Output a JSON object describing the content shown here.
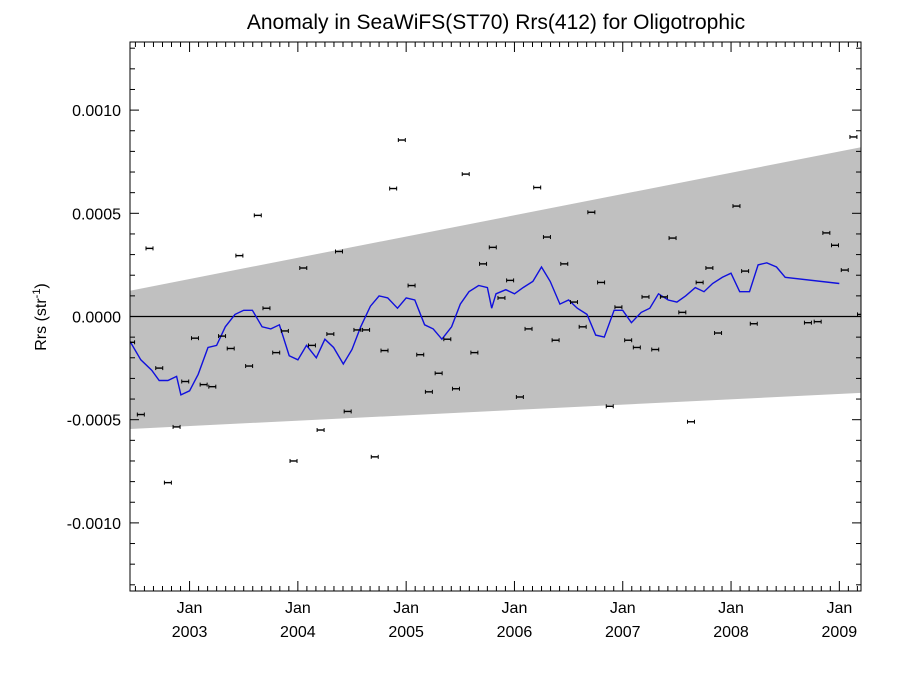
{
  "chart_data": {
    "type": "scatter",
    "title": "Anomaly in SeaWiFS(ST70) Rrs(412) for Oligotrophic",
    "ylabel": "Rrs (str",
    "ylabel_sup": "-1",
    "ylabel_suffix": ")",
    "xlim": [
      2002.45,
      2009.2
    ],
    "ylim": [
      -0.00133,
      0.00133
    ],
    "y_ticks": [
      {
        "value": 0.001,
        "label": "0.0010"
      },
      {
        "value": 0.0005,
        "label": "0.0005"
      },
      {
        "value": 0.0,
        "label": "0.0000"
      },
      {
        "value": -0.0005,
        "label": "-0.0005"
      },
      {
        "value": -0.001,
        "label": "-0.0010"
      }
    ],
    "x_ticks": [
      {
        "value": 2003.0,
        "month": "Jan",
        "year": "2003"
      },
      {
        "value": 2004.0,
        "month": "Jan",
        "year": "2004"
      },
      {
        "value": 2005.0,
        "month": "Jan",
        "year": "2005"
      },
      {
        "value": 2006.0,
        "month": "Jan",
        "year": "2006"
      },
      {
        "value": 2007.0,
        "month": "Jan",
        "year": "2007"
      },
      {
        "value": 2008.0,
        "month": "Jan",
        "year": "2008"
      },
      {
        "value": 2009.0,
        "month": "Jan",
        "year": "2009"
      }
    ],
    "band": {
      "color": "#c0c0c0",
      "upper": [
        [
          2002.45,
          0.000125
        ],
        [
          2009.2,
          0.00082
        ]
      ],
      "lower": [
        [
          2002.45,
          -0.000545
        ],
        [
          2009.2,
          -0.00037
        ]
      ]
    },
    "zero_line": 0.0,
    "points": [
      [
        2002.46,
        -0.000125
      ],
      [
        2002.55,
        -0.000475
      ],
      [
        2002.63,
        0.00033
      ],
      [
        2002.72,
        -0.00025
      ],
      [
        2002.8,
        -0.000805
      ],
      [
        2002.88,
        -0.000535
      ],
      [
        2002.96,
        -0.000315
      ],
      [
        2003.05,
        -0.000105
      ],
      [
        2003.13,
        -0.00033
      ],
      [
        2003.21,
        -0.00034
      ],
      [
        2003.3,
        -9.5e-05
      ],
      [
        2003.38,
        -0.000155
      ],
      [
        2003.46,
        0.000295
      ],
      [
        2003.55,
        -0.00024
      ],
      [
        2003.63,
        0.00049
      ],
      [
        2003.71,
        4e-05
      ],
      [
        2003.8,
        -0.000175
      ],
      [
        2003.88,
        -7e-05
      ],
      [
        2003.96,
        -0.0007
      ],
      [
        2004.05,
        0.000235
      ],
      [
        2004.13,
        -0.00014
      ],
      [
        2004.21,
        -0.00055
      ],
      [
        2004.3,
        -8.5e-05
      ],
      [
        2004.38,
        0.000315
      ],
      [
        2004.46,
        -0.00046
      ],
      [
        2004.55,
        -6.5e-05
      ],
      [
        2004.63,
        -6.5e-05
      ],
      [
        2004.71,
        -0.00068
      ],
      [
        2004.8,
        -0.000165
      ],
      [
        2004.88,
        0.00062
      ],
      [
        2004.96,
        0.000855
      ],
      [
        2005.05,
        0.00015
      ],
      [
        2005.13,
        -0.000185
      ],
      [
        2005.21,
        -0.000365
      ],
      [
        2005.3,
        -0.000275
      ],
      [
        2005.38,
        -0.00011
      ],
      [
        2005.46,
        -0.00035
      ],
      [
        2005.55,
        0.00069
      ],
      [
        2005.63,
        -0.000175
      ],
      [
        2005.71,
        0.000255
      ],
      [
        2005.8,
        0.000335
      ],
      [
        2005.88,
        9e-05
      ],
      [
        2005.96,
        0.000175
      ],
      [
        2006.05,
        -0.00039
      ],
      [
        2006.13,
        -6e-05
      ],
      [
        2006.21,
        0.000625
      ],
      [
        2006.3,
        0.000385
      ],
      [
        2006.38,
        -0.000115
      ],
      [
        2006.46,
        0.000255
      ],
      [
        2006.55,
        7e-05
      ],
      [
        2006.63,
        -5e-05
      ],
      [
        2006.71,
        0.000505
      ],
      [
        2006.8,
        0.000165
      ],
      [
        2006.88,
        -0.000435
      ],
      [
        2006.96,
        4.5e-05
      ],
      [
        2007.05,
        -0.000115
      ],
      [
        2007.13,
        -0.00015
      ],
      [
        2007.21,
        9.5e-05
      ],
      [
        2007.3,
        -0.00016
      ],
      [
        2007.38,
        9.5e-05
      ],
      [
        2007.46,
        0.00038
      ],
      [
        2007.55,
        2e-05
      ],
      [
        2007.63,
        -0.00051
      ],
      [
        2007.71,
        0.000165
      ],
      [
        2007.8,
        0.000235
      ],
      [
        2007.88,
        -8e-05
      ],
      [
        2008.05,
        0.000535
      ],
      [
        2008.13,
        0.00022
      ],
      [
        2008.21,
        -3.5e-05
      ],
      [
        2008.71,
        -3e-05
      ],
      [
        2008.8,
        -2.5e-05
      ],
      [
        2008.88,
        0.000405
      ],
      [
        2008.96,
        0.000345
      ],
      [
        2009.05,
        0.000225
      ],
      [
        2009.13,
        0.00087
      ],
      [
        2009.2,
        1e-05
      ]
    ],
    "line": {
      "color": "#1010dd",
      "points": [
        [
          2002.45,
          -0.00012
        ],
        [
          2002.55,
          -0.00021
        ],
        [
          2002.65,
          -0.00026
        ],
        [
          2002.72,
          -0.00031
        ],
        [
          2002.8,
          -0.00031
        ],
        [
          2002.88,
          -0.00029
        ],
        [
          2002.92,
          -0.00038
        ],
        [
          2003.0,
          -0.00036
        ],
        [
          2003.08,
          -0.00028
        ],
        [
          2003.17,
          -0.00015
        ],
        [
          2003.25,
          -0.00014
        ],
        [
          2003.33,
          -5e-05
        ],
        [
          2003.42,
          1e-05
        ],
        [
          2003.5,
          3e-05
        ],
        [
          2003.58,
          3e-05
        ],
        [
          2003.67,
          -5e-05
        ],
        [
          2003.75,
          -6e-05
        ],
        [
          2003.83,
          -4e-05
        ],
        [
          2003.92,
          -0.00019
        ],
        [
          2004.0,
          -0.00021
        ],
        [
          2004.08,
          -0.00014
        ],
        [
          2004.17,
          -0.0002
        ],
        [
          2004.25,
          -0.00011
        ],
        [
          2004.33,
          -0.00015
        ],
        [
          2004.42,
          -0.00023
        ],
        [
          2004.5,
          -0.00016
        ],
        [
          2004.58,
          -5e-05
        ],
        [
          2004.67,
          5e-05
        ],
        [
          2004.75,
          0.0001
        ],
        [
          2004.83,
          9e-05
        ],
        [
          2004.92,
          4e-05
        ],
        [
          2005.0,
          9e-05
        ],
        [
          2005.08,
          8e-05
        ],
        [
          2005.17,
          -4e-05
        ],
        [
          2005.25,
          -6e-05
        ],
        [
          2005.33,
          -0.00011
        ],
        [
          2005.42,
          -5e-05
        ],
        [
          2005.5,
          6e-05
        ],
        [
          2005.58,
          0.00012
        ],
        [
          2005.67,
          0.00015
        ],
        [
          2005.75,
          0.00014
        ],
        [
          2005.79,
          4e-05
        ],
        [
          2005.83,
          0.00011
        ],
        [
          2005.92,
          0.00013
        ],
        [
          2006.0,
          0.00011
        ],
        [
          2006.08,
          0.00014
        ],
        [
          2006.17,
          0.00017
        ],
        [
          2006.25,
          0.00024
        ],
        [
          2006.33,
          0.00017
        ],
        [
          2006.42,
          6e-05
        ],
        [
          2006.5,
          8e-05
        ],
        [
          2006.58,
          4e-05
        ],
        [
          2006.67,
          1e-05
        ],
        [
          2006.75,
          -9e-05
        ],
        [
          2006.83,
          -0.0001
        ],
        [
          2006.92,
          3e-05
        ],
        [
          2007.0,
          3e-05
        ],
        [
          2007.08,
          -3e-05
        ],
        [
          2007.17,
          2e-05
        ],
        [
          2007.25,
          4e-05
        ],
        [
          2007.33,
          0.00011
        ],
        [
          2007.42,
          8e-05
        ],
        [
          2007.5,
          7e-05
        ],
        [
          2007.58,
          0.0001
        ],
        [
          2007.67,
          0.00014
        ],
        [
          2007.75,
          0.00012
        ],
        [
          2007.83,
          0.00016
        ],
        [
          2007.92,
          0.00019
        ],
        [
          2008.0,
          0.00021
        ],
        [
          2008.08,
          0.00012
        ],
        [
          2008.17,
          0.00012
        ],
        [
          2008.25,
          0.00025
        ],
        [
          2008.33,
          0.00026
        ],
        [
          2008.42,
          0.00024
        ],
        [
          2008.5,
          0.00019
        ],
        [
          2009.0,
          0.00016
        ]
      ]
    },
    "grid": false,
    "legend": "none"
  }
}
